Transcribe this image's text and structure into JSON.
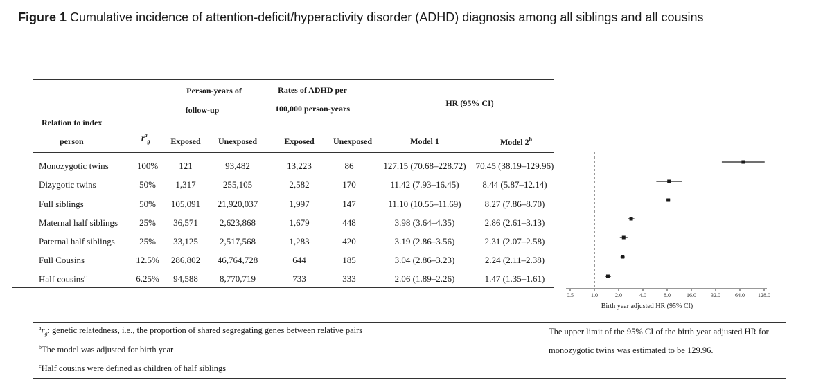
{
  "title": {
    "label": "Figure 1",
    "text": "Cumulative incidence of attention-deficit/hyperactivity disorder (ADHD) diagnosis among all siblings and all cousins"
  },
  "table": {
    "headers": {
      "relation_line1": "Relation to index",
      "relation_line2": "person",
      "rg_symbol": "r",
      "rg_sup": "a",
      "rg_sub": "g",
      "person_years_line1": "Person-years of",
      "person_years_line2": "follow-up",
      "rates_line1": "Rates of ADHD per",
      "rates_line2": "100,000 person-years",
      "hr": "HR (95% CI)",
      "exposed": "Exposed",
      "unexposed": "Unexposed",
      "model1": "Model 1",
      "model2": "Model 2",
      "model2_sup": "b"
    },
    "rows": [
      {
        "relation": "Monozygotic twins",
        "rg": "100%",
        "py_exposed": "121",
        "py_unexposed": "93,482",
        "rate_exposed": "13,223",
        "rate_unexposed": "86",
        "model1": "127.15 (70.68–228.72)",
        "model2": "70.45 (38.19–129.96)"
      },
      {
        "relation": "Dizygotic twins",
        "rg": "50%",
        "py_exposed": "1,317",
        "py_unexposed": "255,105",
        "rate_exposed": "2,582",
        "rate_unexposed": "170",
        "model1": "11.42 (7.93–16.45)",
        "model2": "8.44 (5.87–12.14)"
      },
      {
        "relation": "Full siblings",
        "rg": "50%",
        "py_exposed": "105,091",
        "py_unexposed": "21,920,037",
        "rate_exposed": "1,997",
        "rate_unexposed": "147",
        "model1": "11.10 (10.55–11.69)",
        "model2": "8.27 (7.86–8.70)"
      },
      {
        "relation": "Maternal half siblings",
        "rg": "25%",
        "py_exposed": "36,571",
        "py_unexposed": "2,623,868",
        "rate_exposed": "1,679",
        "rate_unexposed": "448",
        "model1": "3.98 (3.64–4.35)",
        "model2": "2.86 (2.61–3.13)"
      },
      {
        "relation": "Paternal half siblings",
        "rg": "25%",
        "py_exposed": "33,125",
        "py_unexposed": "2,517,568",
        "rate_exposed": "1,283",
        "rate_unexposed": "420",
        "model1": "3.19 (2.86–3.56)",
        "model2": "2.31 (2.07–2.58)"
      },
      {
        "relation": "Full Cousins",
        "rg": "12.5%",
        "py_exposed": "286,802",
        "py_unexposed": "46,764,728",
        "rate_exposed": "644",
        "rate_unexposed": "185",
        "model1": "3.04 (2.86–3.23)",
        "model2": "2.24 (2.11–2.38)"
      },
      {
        "relation": "Half cousins",
        "relation_sup": "c",
        "rg": "6.25%",
        "py_exposed": "94,588",
        "py_unexposed": "8,770,719",
        "rate_exposed": "733",
        "rate_unexposed": "333",
        "model1": "2.06 (1.89–2.26)",
        "model2": "1.47 (1.35–1.61)"
      }
    ]
  },
  "footnotes": {
    "a_sup": "a",
    "a_symbol": "r",
    "a_sub": "g",
    "a_text": ": genetic relatedness, i.e., the proportion of shared segregating genes between relative pairs",
    "b_sup": "b",
    "b_text": "The model was adjusted for birth year",
    "c_sup": "c",
    "c_text": "Half cousins were defined as children of half siblings"
  },
  "side_note": {
    "line1": "The upper limit of the 95% CI of the birth year adjusted HR for",
    "line2": "monozygotic twins was estimated to be 129.96."
  },
  "chart_data": {
    "type": "forest",
    "xlabel": "Birth year adjusted HR (95% CI)",
    "x_scale": "log2",
    "xlim": [
      0.5,
      128.0
    ],
    "x_ticks": [
      "0.5",
      "1.0",
      "2.0",
      "4.0",
      "8.0",
      "16.0",
      "32.0",
      "64.0",
      "128.0"
    ],
    "reference_line": 1.0,
    "series": [
      {
        "name": "Monozygotic twins",
        "estimate": 70.45,
        "lower": 38.19,
        "upper": 129.96
      },
      {
        "name": "Dizygotic twins",
        "estimate": 8.44,
        "lower": 5.87,
        "upper": 12.14
      },
      {
        "name": "Full siblings",
        "estimate": 8.27,
        "lower": 7.86,
        "upper": 8.7
      },
      {
        "name": "Maternal half siblings",
        "estimate": 2.86,
        "lower": 2.61,
        "upper": 3.13
      },
      {
        "name": "Paternal half siblings",
        "estimate": 2.31,
        "lower": 2.07,
        "upper": 2.58
      },
      {
        "name": "Full Cousins",
        "estimate": 2.24,
        "lower": 2.11,
        "upper": 2.38
      },
      {
        "name": "Half cousins",
        "estimate": 1.47,
        "lower": 1.35,
        "upper": 1.61
      }
    ],
    "colors": {
      "marker": "#1a1a1a",
      "axis": "#333333"
    }
  }
}
